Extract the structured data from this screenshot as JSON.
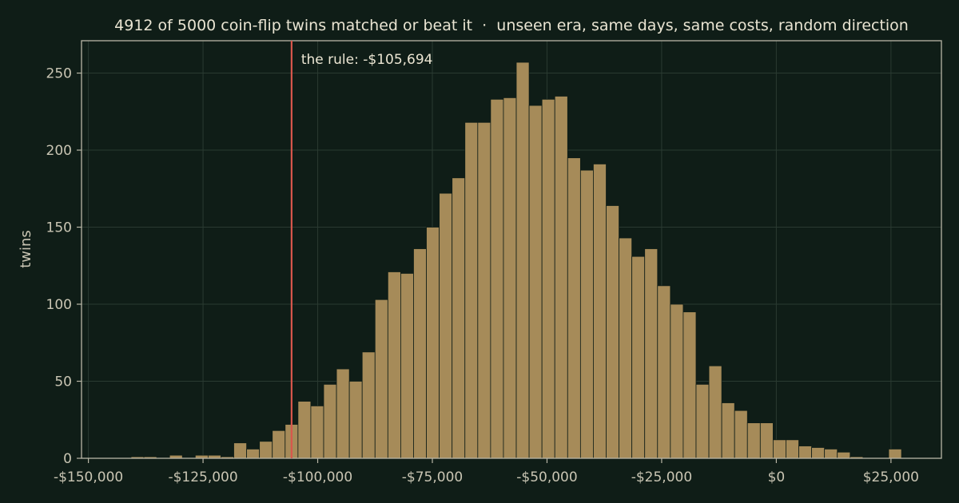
{
  "chart_data": {
    "type": "bar",
    "title": "4912 of 5000 coin-flip twins matched or beat it  ·  unseen era, same days, same costs, random direction",
    "xlabel": "",
    "ylabel": "twins",
    "xlim": [
      -151500,
      36000
    ],
    "ylim": [
      0,
      271
    ],
    "grid": true,
    "x_ticks": [
      -150000,
      -125000,
      -100000,
      -75000,
      -50000,
      -25000,
      0,
      25000
    ],
    "x_tick_labels": [
      "-$150,000",
      "-$125,000",
      "-$100,000",
      "-$75,000",
      "-$50,000",
      "-$25,000",
      "$0",
      "$25,000"
    ],
    "y_ticks": [
      0,
      50,
      100,
      150,
      200,
      250
    ],
    "y_tick_labels": [
      "0",
      "50",
      "100",
      "150",
      "200",
      "250"
    ],
    "bin_start": -143500,
    "bin_width": 2800,
    "counts": [
      0,
      1,
      1,
      0,
      2,
      0,
      2,
      2,
      1,
      10,
      6,
      11,
      18,
      22,
      37,
      34,
      48,
      58,
      50,
      69,
      103,
      121,
      120,
      136,
      150,
      172,
      182,
      218,
      218,
      233,
      234,
      257,
      229,
      233,
      235,
      195,
      187,
      191,
      164,
      143,
      131,
      136,
      112,
      100,
      95,
      48,
      60,
      36,
      31,
      23,
      23,
      12,
      12,
      8,
      7,
      6,
      4,
      1,
      0,
      0,
      6
    ],
    "bar_color": "#a68b59",
    "bar_edge_color": "#0f1d17",
    "marker": {
      "x": -105694,
      "label": "the rule: -$105,694",
      "color": "#d8574c"
    }
  }
}
